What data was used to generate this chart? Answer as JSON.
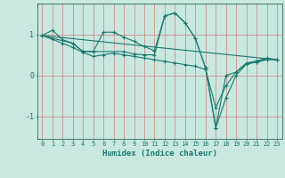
{
  "title": "",
  "xlabel": "Humidex (Indice chaleur)",
  "bg_color": "#c8e8e0",
  "grid_color": "#d08080",
  "line_color": "#1a7a6e",
  "xlim": [
    -0.5,
    23.5
  ],
  "ylim": [
    -1.55,
    1.75
  ],
  "yticks": [
    -1,
    0,
    1
  ],
  "xticks": [
    0,
    1,
    2,
    3,
    4,
    5,
    6,
    7,
    8,
    9,
    10,
    11,
    12,
    13,
    14,
    15,
    16,
    17,
    18,
    19,
    20,
    21,
    22,
    23
  ],
  "series": [
    {
      "x": [
        0,
        1,
        2,
        3,
        4,
        5,
        6,
        7,
        8,
        9,
        10,
        11,
        12,
        13,
        14,
        15,
        16,
        17,
        18,
        19,
        20,
        21,
        22,
        23
      ],
      "y": [
        0.97,
        1.1,
        0.87,
        0.78,
        0.58,
        0.58,
        1.05,
        1.05,
        0.93,
        0.83,
        0.7,
        0.6,
        1.45,
        1.52,
        1.28,
        0.9,
        0.18,
        -1.28,
        -0.0,
        0.08,
        0.3,
        0.35,
        0.42,
        0.38
      ],
      "marker": true
    },
    {
      "x": [
        0,
        1,
        2,
        3,
        4,
        5,
        6,
        7,
        8,
        9,
        10,
        11,
        12,
        13,
        14,
        15,
        16,
        17,
        18,
        19,
        20,
        21,
        22,
        23
      ],
      "y": [
        0.97,
        0.88,
        0.78,
        0.68,
        0.56,
        0.46,
        0.5,
        0.54,
        0.5,
        0.46,
        0.42,
        0.38,
        0.34,
        0.3,
        0.26,
        0.22,
        0.14,
        -0.78,
        -0.25,
        0.08,
        0.28,
        0.32,
        0.38,
        0.38
      ],
      "marker": true
    },
    {
      "x": [
        0,
        3,
        4,
        5,
        8,
        9,
        10,
        11,
        12,
        13,
        14,
        15,
        16,
        17,
        18,
        19,
        20,
        21,
        22,
        23
      ],
      "y": [
        0.97,
        0.78,
        0.58,
        0.58,
        0.58,
        0.52,
        0.5,
        0.5,
        1.45,
        1.52,
        1.28,
        0.9,
        0.18,
        -1.28,
        -0.55,
        0.0,
        0.28,
        0.32,
        0.4,
        0.38
      ],
      "marker": true
    },
    {
      "x": [
        0,
        23
      ],
      "y": [
        0.97,
        0.38
      ],
      "marker": false
    }
  ]
}
